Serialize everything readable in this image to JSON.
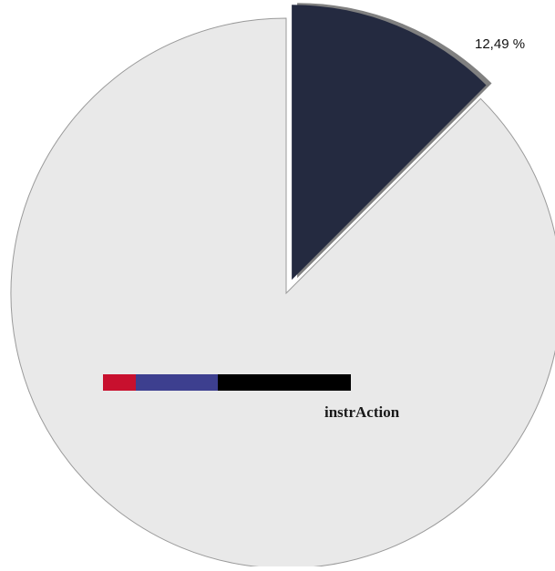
{
  "chart_data": {
    "type": "pie",
    "title": "",
    "slices": [
      {
        "label": "12,49 %",
        "value": 12.49,
        "color": "#242a40",
        "exploded": true,
        "shadow": "#808080"
      },
      {
        "label": "",
        "value": 87.51,
        "color": "#e9e9e9",
        "exploded": false
      }
    ],
    "legend": {
      "placement": "center",
      "text": "instrAction",
      "color_bar": [
        "#c8102e",
        "#3d3f8f",
        "#000000"
      ]
    },
    "background": "#ffffff"
  }
}
